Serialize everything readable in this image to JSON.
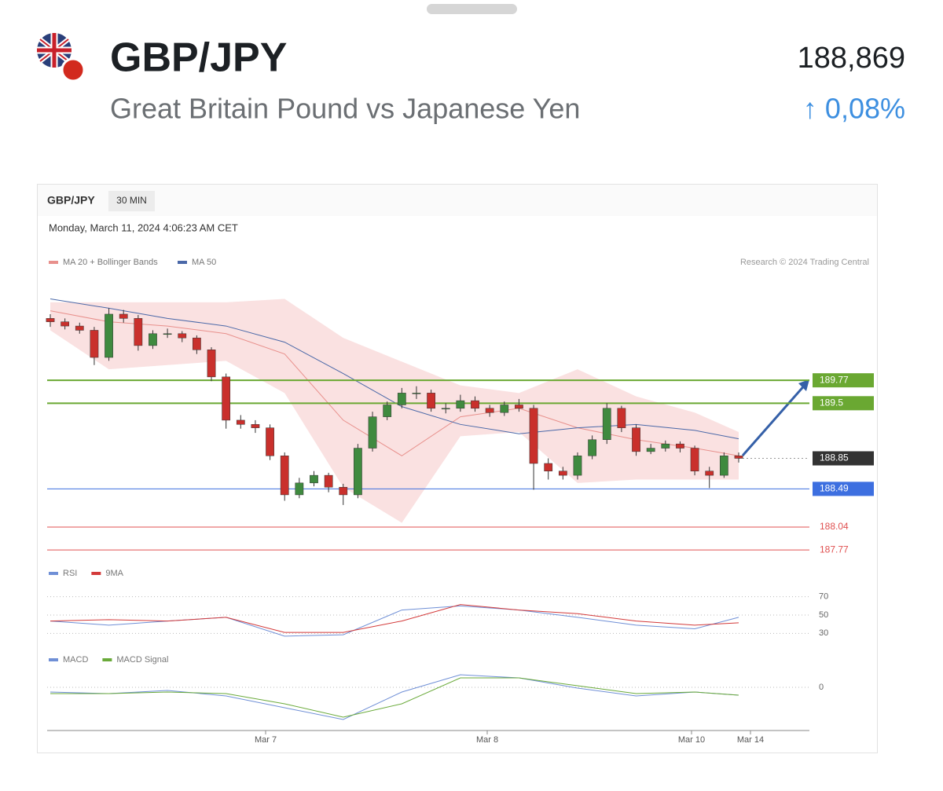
{
  "header": {
    "symbol": "GBP/JPY",
    "name": "Great Britain Pound vs Japanese Yen",
    "price": "188,869",
    "change": "↑ 0,08%"
  },
  "chart_data": {
    "type": "candlestick",
    "symbol": "GBP/JPY",
    "interval": "30 MIN",
    "timestamp": "Monday, March 11, 2024 4:06:23 AM CET",
    "credit": "Research © 2024 Trading Central",
    "legend": [
      "MA 20 + Bollinger Bands",
      "MA 50"
    ],
    "x_labels": [
      "Mar 7",
      "Mar 8",
      "Mar 10",
      "Mar 14"
    ],
    "up_color": "#3f8a3f",
    "down_color": "#c9302c",
    "ylim": [
      187.66,
      190.92
    ],
    "candles": [
      [
        190.5,
        190.55,
        190.4,
        190.46
      ],
      [
        190.46,
        190.5,
        190.37,
        190.41
      ],
      [
        190.41,
        190.45,
        190.32,
        190.36
      ],
      [
        190.36,
        190.4,
        189.95,
        190.04
      ],
      [
        190.04,
        190.62,
        190.0,
        190.55
      ],
      [
        190.55,
        190.6,
        190.45,
        190.5
      ],
      [
        190.5,
        190.54,
        190.12,
        190.18
      ],
      [
        190.18,
        190.36,
        190.14,
        190.32
      ],
      [
        190.32,
        190.38,
        190.27,
        190.32
      ],
      [
        190.32,
        190.35,
        190.22,
        190.27
      ],
      [
        190.27,
        190.3,
        190.08,
        190.13
      ],
      [
        190.13,
        190.16,
        189.76,
        189.81
      ],
      [
        189.81,
        189.85,
        189.2,
        189.3
      ],
      [
        189.3,
        189.36,
        189.2,
        189.25
      ],
      [
        189.25,
        189.3,
        189.15,
        189.21
      ],
      [
        189.21,
        189.25,
        188.83,
        188.88
      ],
      [
        188.88,
        188.92,
        188.35,
        188.42
      ],
      [
        188.42,
        188.62,
        188.38,
        188.56
      ],
      [
        188.56,
        188.7,
        188.52,
        188.65
      ],
      [
        188.65,
        188.68,
        188.45,
        188.51
      ],
      [
        188.51,
        188.55,
        188.3,
        188.42
      ],
      [
        188.42,
        189.02,
        188.38,
        188.97
      ],
      [
        188.97,
        189.4,
        188.93,
        189.34
      ],
      [
        189.34,
        189.52,
        189.3,
        189.48
      ],
      [
        189.48,
        189.68,
        189.44,
        189.62
      ],
      [
        189.62,
        189.7,
        189.55,
        189.62
      ],
      [
        189.62,
        189.66,
        189.4,
        189.44
      ],
      [
        189.44,
        189.5,
        189.38,
        189.44
      ],
      [
        189.44,
        189.6,
        189.4,
        189.53
      ],
      [
        189.53,
        189.58,
        189.4,
        189.44
      ],
      [
        189.44,
        189.48,
        189.34,
        189.39
      ],
      [
        189.39,
        189.52,
        189.35,
        189.48
      ],
      [
        189.48,
        189.55,
        189.4,
        189.44
      ],
      [
        189.44,
        189.48,
        188.48,
        188.79
      ],
      [
        188.79,
        188.85,
        188.6,
        188.7
      ],
      [
        188.7,
        188.75,
        188.6,
        188.65
      ],
      [
        188.65,
        188.92,
        188.6,
        188.88
      ],
      [
        188.88,
        189.12,
        188.84,
        189.07
      ],
      [
        189.07,
        189.5,
        189.02,
        189.44
      ],
      [
        189.44,
        189.47,
        189.16,
        189.21
      ],
      [
        189.21,
        189.25,
        188.88,
        188.93
      ],
      [
        188.93,
        189.02,
        188.9,
        188.97
      ],
      [
        188.97,
        189.06,
        188.93,
        189.02
      ],
      [
        189.02,
        189.05,
        188.92,
        188.97
      ],
      [
        188.97,
        189.0,
        188.65,
        188.7
      ],
      [
        188.7,
        188.75,
        188.5,
        188.65
      ],
      [
        188.65,
        188.92,
        188.62,
        188.88
      ],
      [
        188.88,
        188.92,
        188.8,
        188.85
      ]
    ],
    "overlay_x": [
      0,
      4,
      8,
      12,
      16,
      20,
      24,
      28,
      32,
      36,
      40,
      44,
      47
    ],
    "ma20": {
      "color": "#e8908c",
      "values": [
        190.59,
        190.46,
        190.41,
        190.32,
        190.08,
        189.3,
        188.88,
        189.34,
        189.44,
        189.21,
        189.07,
        188.97,
        188.88
      ]
    },
    "ma50": {
      "color": "#4a68a8",
      "values": [
        190.73,
        190.62,
        190.5,
        190.41,
        190.22,
        189.85,
        189.46,
        189.25,
        189.14,
        189.21,
        189.25,
        189.18,
        189.08
      ]
    },
    "band_color": "#f9dcdc",
    "band_upper": [
      190.69,
      190.69,
      190.69,
      190.69,
      190.73,
      190.27,
      189.99,
      189.71,
      189.62,
      189.9,
      189.58,
      189.39,
      189.16
    ],
    "band_lower": [
      190.36,
      189.9,
      189.95,
      190.0,
      189.62,
      188.51,
      188.09,
      189.11,
      189.16,
      188.56,
      188.6,
      188.6,
      188.6
    ],
    "levels": [
      {
        "value": 189.77,
        "color": "#6aa832",
        "boxed": true
      },
      {
        "value": 189.5,
        "color": "#6aa832",
        "boxed": true
      },
      {
        "value": 188.85,
        "color": "#333333",
        "boxed": true,
        "dotted": true
      },
      {
        "value": 188.49,
        "color": "#3d6fe0",
        "boxed": true
      },
      {
        "value": 188.04,
        "color": "#e05050",
        "boxed": false
      },
      {
        "value": 187.77,
        "color": "#e05050",
        "boxed": false
      }
    ],
    "rsi_panel": {
      "ylim": [
        20,
        80
      ],
      "yticks": [
        70,
        50,
        30
      ],
      "series": [
        {
          "name": "RSI",
          "color": "#6f8fd6",
          "values": [
            43.5,
            39,
            43.5,
            47.5,
            27,
            28.5,
            55.5,
            60,
            55.5,
            47.5,
            39,
            35,
            47.5
          ]
        },
        {
          "name": "9MA",
          "color": "#d33a3a",
          "values": [
            43.5,
            45,
            43.5,
            47.5,
            31,
            31,
            43.5,
            61.5,
            55.5,
            51.5,
            43.5,
            39,
            41.5
          ]
        }
      ]
    },
    "macd_panel": {
      "ylim": [
        -0.5,
        0.25
      ],
      "yticks": [
        0
      ],
      "series": [
        {
          "name": "MACD",
          "color": "#6f8fd6",
          "values": [
            -0.06,
            -0.08,
            -0.04,
            -0.11,
            -0.26,
            -0.41,
            -0.06,
            0.16,
            0.12,
            -0.01,
            -0.11,
            -0.06,
            -0.1
          ]
        },
        {
          "name": "MACD Signal",
          "color": "#6aaa3a",
          "values": [
            -0.08,
            -0.08,
            -0.06,
            -0.08,
            -0.21,
            -0.38,
            -0.21,
            0.12,
            0.12,
            0.02,
            -0.08,
            -0.06,
            -0.1
          ]
        }
      ]
    }
  }
}
